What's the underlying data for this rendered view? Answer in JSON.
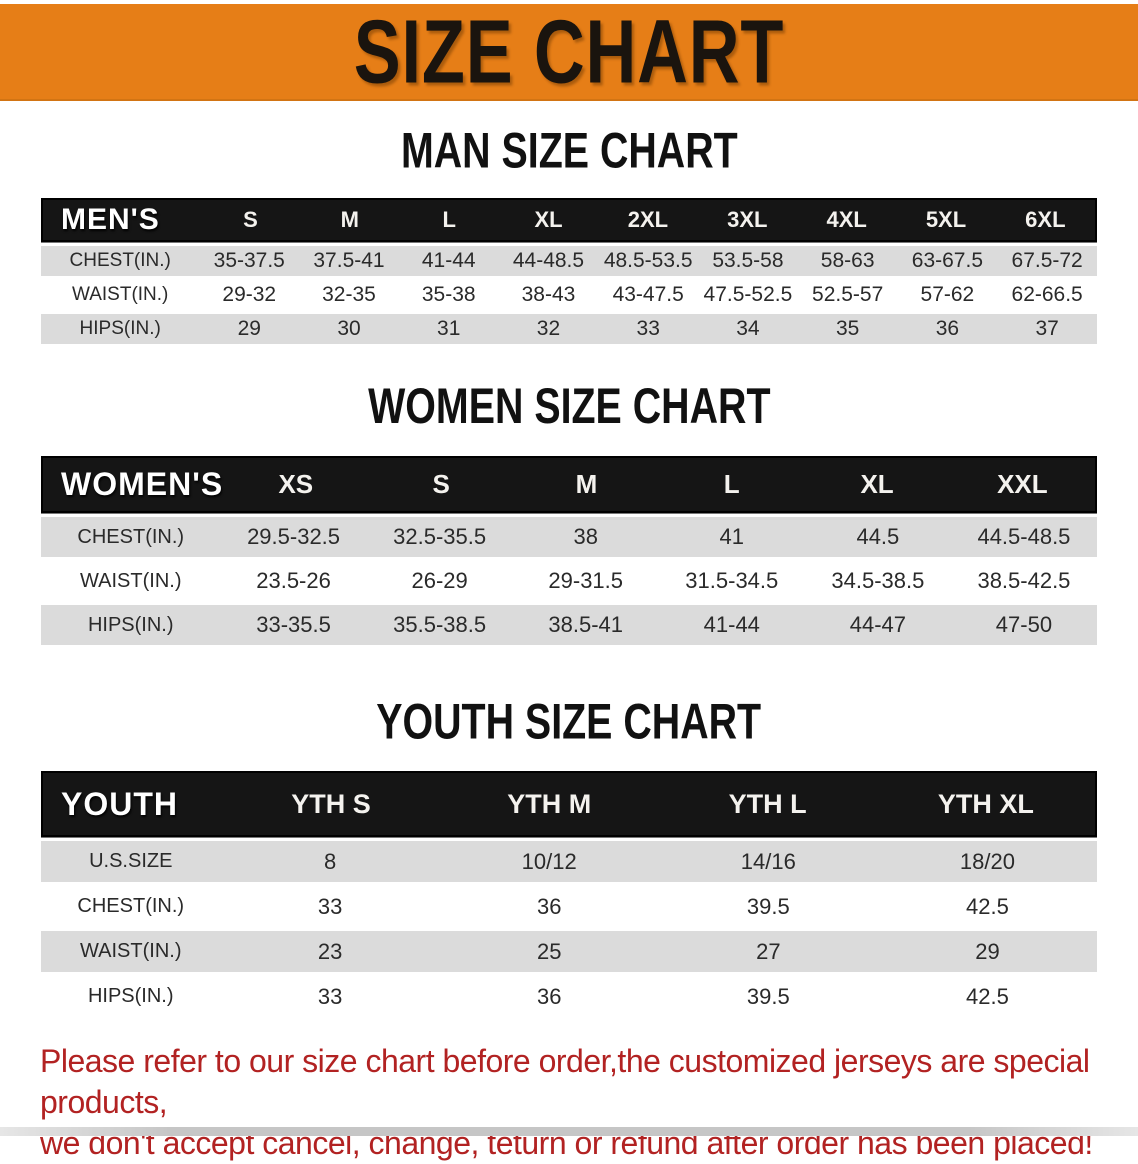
{
  "banner": {
    "title": "SIZE CHART"
  },
  "colors": {
    "banner_bg": "#E67E17",
    "table_header_bg": "#151515",
    "row_stripe": "#DBDBDB",
    "disclaimer_text": "#B22222"
  },
  "sections": [
    {
      "heading": "MAN SIZE CHART",
      "table": {
        "label": "MEN'S",
        "columns": [
          "S",
          "M",
          "L",
          "XL",
          "2XL",
          "3XL",
          "4XL",
          "5XL",
          "6XL"
        ],
        "rows": [
          {
            "label": "CHEST(IN.)",
            "values": [
              "35-37.5",
              "37.5-41",
              "41-44",
              "44-48.5",
              "48.5-53.5",
              "53.5-58",
              "58-63",
              "63-67.5",
              "67.5-72"
            ]
          },
          {
            "label": "WAIST(IN.)",
            "values": [
              "29-32",
              "32-35",
              "35-38",
              "38-43",
              "43-47.5",
              "47.5-52.5",
              "52.5-57",
              "57-62",
              "62-66.5"
            ]
          },
          {
            "label": "HIPS(IN.)",
            "values": [
              "29",
              "30",
              "31",
              "32",
              "33",
              "34",
              "35",
              "36",
              "37"
            ]
          }
        ]
      }
    },
    {
      "heading": "WOMEN SIZE CHART",
      "table": {
        "label": "WOMEN'S",
        "columns": [
          "XS",
          "S",
          "M",
          "L",
          "XL",
          "XXL"
        ],
        "rows": [
          {
            "label": "CHEST(IN.)",
            "values": [
              "29.5-32.5",
              "32.5-35.5",
              "38",
              "41",
              "44.5",
              "44.5-48.5"
            ]
          },
          {
            "label": "WAIST(IN.)",
            "values": [
              "23.5-26",
              "26-29",
              "29-31.5",
              "31.5-34.5",
              "34.5-38.5",
              "38.5-42.5"
            ]
          },
          {
            "label": "HIPS(IN.)",
            "values": [
              "33-35.5",
              "35.5-38.5",
              "38.5-41",
              "41-44",
              "44-47",
              "47-50"
            ]
          }
        ]
      }
    },
    {
      "heading": "YOUTH SIZE CHART",
      "table": {
        "label": "YOUTH",
        "columns": [
          "YTH S",
          "YTH M",
          "YTH L",
          "YTH XL"
        ],
        "rows": [
          {
            "label": "U.S.SIZE",
            "values": [
              "8",
              "10/12",
              "14/16",
              "18/20"
            ]
          },
          {
            "label": "CHEST(IN.)",
            "values": [
              "33",
              "36",
              "39.5",
              "42.5"
            ]
          },
          {
            "label": "WAIST(IN.)",
            "values": [
              "23",
              "25",
              "27",
              "29"
            ]
          },
          {
            "label": "HIPS(IN.)",
            "values": [
              "33",
              "36",
              "39.5",
              "42.5"
            ]
          }
        ]
      }
    }
  ],
  "disclaimer": {
    "line1": "Please refer to our size chart before order,the customized jerseys are special products,",
    "line2": "we don't accept cancel, change, teturn or refund after order has been placed!"
  }
}
